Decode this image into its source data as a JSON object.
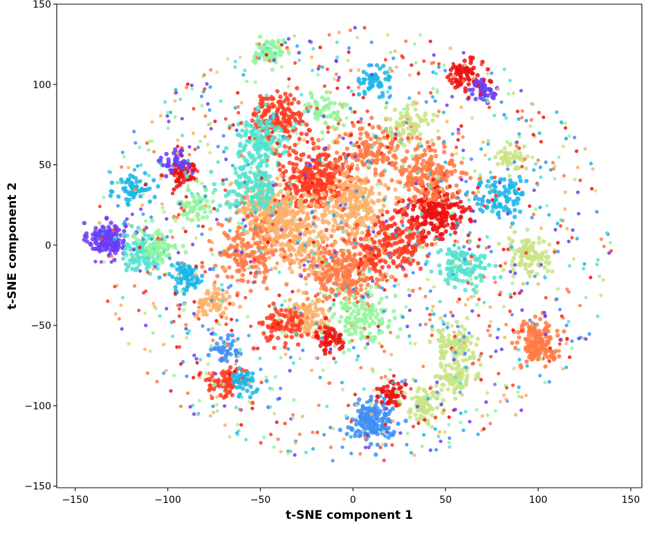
{
  "chart_data": {
    "type": "scatter",
    "title": "",
    "xlabel": "t-SNE component 1",
    "ylabel": "t-SNE component 2",
    "xlim": [
      -160,
      156
    ],
    "ylim": [
      -151,
      150
    ],
    "x_ticks": [
      -150,
      -100,
      -50,
      0,
      50,
      100,
      150
    ],
    "y_ticks": [
      -150,
      -100,
      -50,
      0,
      50,
      100,
      150
    ],
    "x_tick_labels": [
      "−150",
      "−100",
      "−50",
      "0",
      "50",
      "100",
      "150"
    ],
    "y_tick_labels": [
      "−150",
      "−100",
      "−50",
      "0",
      "50",
      "100",
      "150"
    ],
    "grid": false,
    "legend": "none",
    "colormap": "rainbow",
    "palette": [
      "#6a3df5",
      "#3e8ef4",
      "#1bb5e6",
      "#52e3cf",
      "#94f59e",
      "#c9e386",
      "#fdb06a",
      "#ff7a45",
      "#ff3c22",
      "#ee1010"
    ],
    "clusters": [
      {
        "x": -133,
        "y": 4,
        "spread": 5,
        "n": 160,
        "color": 0
      },
      {
        "x": -92,
        "y": 45,
        "spread": 4,
        "n": 60,
        "color": 9
      },
      {
        "x": -95,
        "y": 52,
        "spread": 4,
        "n": 40,
        "color": 0
      },
      {
        "x": -118,
        "y": 35,
        "spread": 5,
        "n": 60,
        "color": 2
      },
      {
        "x": -113,
        "y": -5,
        "spread": 6,
        "n": 120,
        "color": 3
      },
      {
        "x": -105,
        "y": 0,
        "spread": 5,
        "n": 80,
        "color": 4
      },
      {
        "x": -90,
        "y": -20,
        "spread": 5,
        "n": 70,
        "color": 2
      },
      {
        "x": -40,
        "y": 80,
        "spread": 7,
        "n": 160,
        "color": 8
      },
      {
        "x": -50,
        "y": 65,
        "spread": 8,
        "n": 150,
        "color": 3
      },
      {
        "x": -45,
        "y": 120,
        "spread": 4,
        "n": 80,
        "color": 4
      },
      {
        "x": 60,
        "y": 105,
        "spread": 5,
        "n": 80,
        "color": 9
      },
      {
        "x": 12,
        "y": 103,
        "spread": 4,
        "n": 50,
        "color": 2
      },
      {
        "x": -20,
        "y": 40,
        "spread": 10,
        "n": 320,
        "color": 8
      },
      {
        "x": 0,
        "y": 25,
        "spread": 10,
        "n": 260,
        "color": 6
      },
      {
        "x": -45,
        "y": 20,
        "spread": 10,
        "n": 260,
        "color": 6
      },
      {
        "x": -55,
        "y": 35,
        "spread": 8,
        "n": 150,
        "color": 3
      },
      {
        "x": 45,
        "y": 20,
        "spread": 8,
        "n": 220,
        "color": 9
      },
      {
        "x": 40,
        "y": 45,
        "spread": 9,
        "n": 200,
        "color": 7
      },
      {
        "x": 10,
        "y": 60,
        "spread": 9,
        "n": 160,
        "color": 7
      },
      {
        "x": -5,
        "y": -15,
        "spread": 10,
        "n": 300,
        "color": 7
      },
      {
        "x": 20,
        "y": 0,
        "spread": 9,
        "n": 200,
        "color": 8
      },
      {
        "x": -55,
        "y": -5,
        "spread": 9,
        "n": 180,
        "color": 7
      },
      {
        "x": -30,
        "y": 5,
        "spread": 9,
        "n": 180,
        "color": 6
      },
      {
        "x": -25,
        "y": -45,
        "spread": 6,
        "n": 120,
        "color": 6
      },
      {
        "x": 5,
        "y": -45,
        "spread": 8,
        "n": 140,
        "color": 4
      },
      {
        "x": 100,
        "y": -60,
        "spread": 6,
        "n": 150,
        "color": 7
      },
      {
        "x": 55,
        "y": -62,
        "spread": 6,
        "n": 110,
        "color": 5
      },
      {
        "x": 55,
        "y": -82,
        "spread": 5,
        "n": 70,
        "color": 5
      },
      {
        "x": 10,
        "y": -110,
        "spread": 6,
        "n": 160,
        "color": 1
      },
      {
        "x": 20,
        "y": -92,
        "spread": 4,
        "n": 50,
        "color": 9
      },
      {
        "x": -12,
        "y": -58,
        "spread": 4,
        "n": 50,
        "color": 9
      },
      {
        "x": 95,
        "y": -5,
        "spread": 6,
        "n": 110,
        "color": 5
      },
      {
        "x": 85,
        "y": 55,
        "spread": 4,
        "n": 50,
        "color": 5
      },
      {
        "x": 60,
        "y": -15,
        "spread": 7,
        "n": 120,
        "color": 3
      },
      {
        "x": -70,
        "y": -85,
        "spread": 5,
        "n": 70,
        "color": 8
      },
      {
        "x": -58,
        "y": -85,
        "spread": 4,
        "n": 50,
        "color": 2
      },
      {
        "x": -68,
        "y": -65,
        "spread": 4,
        "n": 40,
        "color": 1
      },
      {
        "x": -38,
        "y": -50,
        "spread": 6,
        "n": 90,
        "color": 8
      },
      {
        "x": -85,
        "y": 25,
        "spread": 5,
        "n": 60,
        "color": 4
      },
      {
        "x": 30,
        "y": 75,
        "spread": 6,
        "n": 80,
        "color": 5
      },
      {
        "x": 80,
        "y": 30,
        "spread": 7,
        "n": 90,
        "color": 2
      },
      {
        "x": 70,
        "y": 95,
        "spread": 4,
        "n": 40,
        "color": 0
      },
      {
        "x": -15,
        "y": 85,
        "spread": 5,
        "n": 60,
        "color": 4
      },
      {
        "x": -75,
        "y": -35,
        "spread": 5,
        "n": 70,
        "color": 6
      },
      {
        "x": 38,
        "y": -100,
        "spread": 6,
        "n": 80,
        "color": 5
      },
      {
        "x": 0,
        "y": 0,
        "spread": 45,
        "n": 1400,
        "color": -1
      }
    ]
  }
}
